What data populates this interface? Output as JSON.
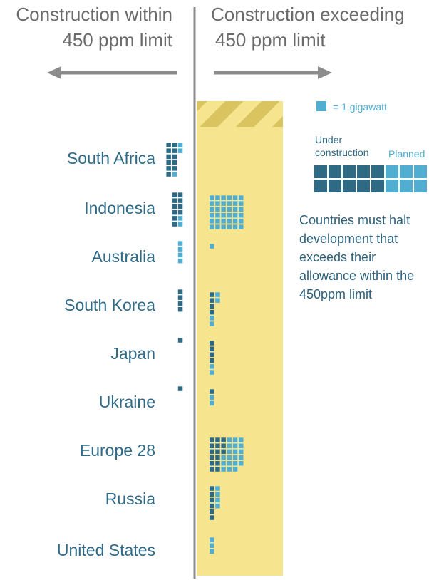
{
  "header": {
    "left_line1": "Construction within",
    "left_line2": "450 ppm limit",
    "right_line1": "Construction exceeding",
    "right_line2": "450 ppm limit"
  },
  "legend": {
    "unit_label": "= 1 gigawatt",
    "under_construction_label_line1": "Under",
    "under_construction_label_line2": "construction",
    "planned_label": "Planned"
  },
  "note": "Countries must halt development that exceeds their allowance within the 450ppm limit",
  "colors": {
    "under_construction": "#2e6a84",
    "planned": "#52aed0",
    "band": "#f7e48f",
    "band_stripe": "#d9c460",
    "divider": "#8c8c8c",
    "arrow": "#8c8c8c"
  },
  "chart_data": {
    "type": "unit-grid",
    "unit": "1 gigawatt per square",
    "series_names": [
      "Under construction",
      "Planned"
    ],
    "categories": [
      "South Africa",
      "Indonesia",
      "Australia",
      "South Korea",
      "Japan",
      "Ukraine",
      "Europe 28",
      "Russia",
      "United States"
    ],
    "within_limit": [
      {
        "country": "South Africa",
        "under_construction": 11,
        "planned": 3
      },
      {
        "country": "Indonesia",
        "under_construction": 10,
        "planned": 2
      },
      {
        "country": "Australia",
        "under_construction": 0,
        "planned": 4
      },
      {
        "country": "South Korea",
        "under_construction": 4,
        "planned": 0
      },
      {
        "country": "Japan",
        "under_construction": 1,
        "planned": 0
      },
      {
        "country": "Ukraine",
        "under_construction": 1,
        "planned": 0
      },
      {
        "country": "Europe 28",
        "under_construction": 0,
        "planned": 0
      },
      {
        "country": "Russia",
        "under_construction": 0,
        "planned": 0
      },
      {
        "country": "United States",
        "under_construction": 0,
        "planned": 0
      }
    ],
    "exceeding_limit": [
      {
        "country": "South Africa",
        "under_construction": 0,
        "planned": 0
      },
      {
        "country": "Indonesia",
        "under_construction": 0,
        "planned": 36
      },
      {
        "country": "Australia",
        "under_construction": 0,
        "planned": 1
      },
      {
        "country": "South Korea",
        "under_construction": 4,
        "planned": 4
      },
      {
        "country": "Japan",
        "under_construction": 4,
        "planned": 2
      },
      {
        "country": "Ukraine",
        "under_construction": 1,
        "planned": 2
      },
      {
        "country": "Europe 28",
        "under_construction": 15,
        "planned": 20
      },
      {
        "country": "Russia",
        "under_construction": 6,
        "planned": 4
      },
      {
        "country": "United States",
        "under_construction": 0,
        "planned": 3
      }
    ]
  }
}
